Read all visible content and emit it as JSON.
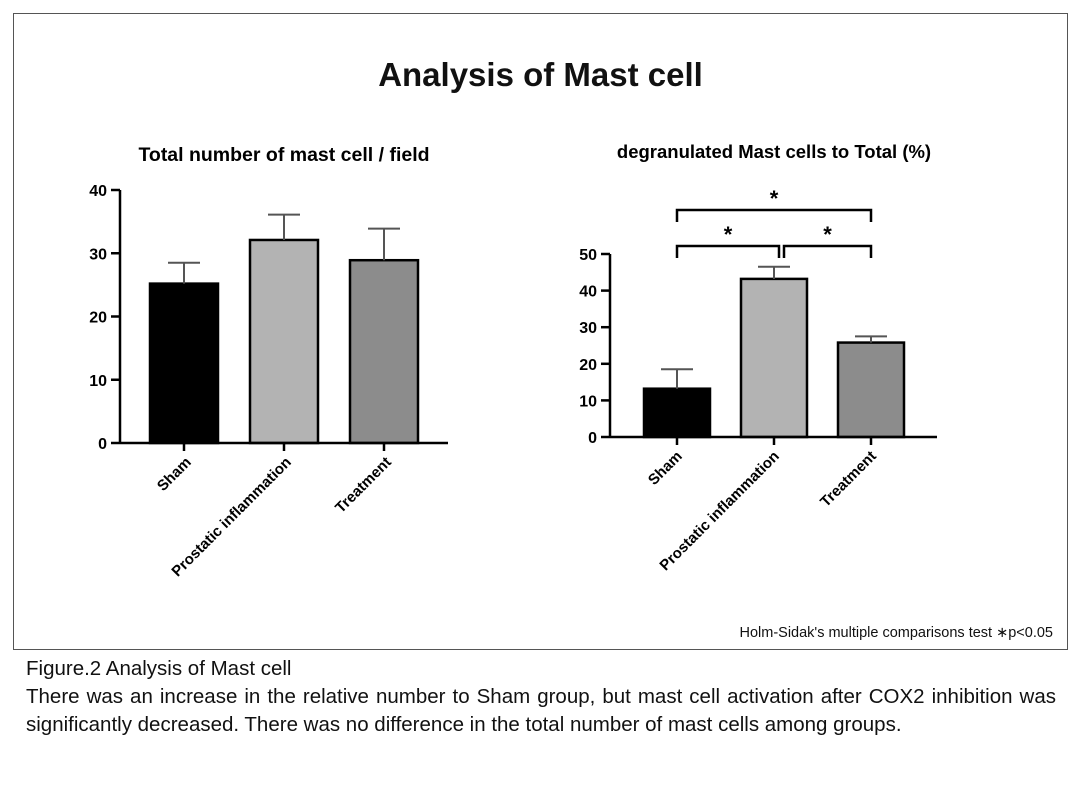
{
  "figure": {
    "main_title": "Analysis of Mast cell",
    "footnote": "Holm-Sidak's multiple comparisons test ∗p<0.05"
  },
  "caption": {
    "title": "Figure.2  Analysis of Mast cell",
    "body": "There was an increase in the relative number to Sham group, but mast cell activation after COX2 inhibition was significantly decreased. There was no difference in the total number of mast cells among groups."
  },
  "chart_data": [
    {
      "type": "bar",
      "title": "Total number of mast cell / field",
      "xlabel": "",
      "ylabel": "",
      "categories": [
        "Sham",
        "Prostatic inflammation",
        "Treatment"
      ],
      "values": [
        25.2,
        32.1,
        28.9
      ],
      "error_upper": [
        3.3,
        4.0,
        5.0
      ],
      "ylim": [
        0,
        40
      ],
      "yticks": [
        0,
        10,
        20,
        30,
        40
      ],
      "bar_colors": [
        "#000000",
        "#b3b3b3",
        "#8c8c8c"
      ],
      "grid": false,
      "significance": []
    },
    {
      "type": "bar",
      "title": "degranulated Mast cells to Total (%)",
      "xlabel": "",
      "ylabel": "",
      "categories": [
        "Sham",
        "Prostatic inflammation",
        "Treatment"
      ],
      "values": [
        13.2,
        43.2,
        25.8
      ],
      "error_upper": [
        5.3,
        3.3,
        1.7
      ],
      "ylim": [
        0,
        50
      ],
      "yticks": [
        0,
        10,
        20,
        30,
        40,
        50
      ],
      "bar_colors": [
        "#000000",
        "#b3b3b3",
        "#8c8c8c"
      ],
      "grid": false,
      "significance": [
        {
          "from": 0,
          "to": 2,
          "label": "*"
        },
        {
          "from": 0,
          "to": 1,
          "label": "*"
        },
        {
          "from": 1,
          "to": 2,
          "label": "*"
        }
      ]
    }
  ]
}
